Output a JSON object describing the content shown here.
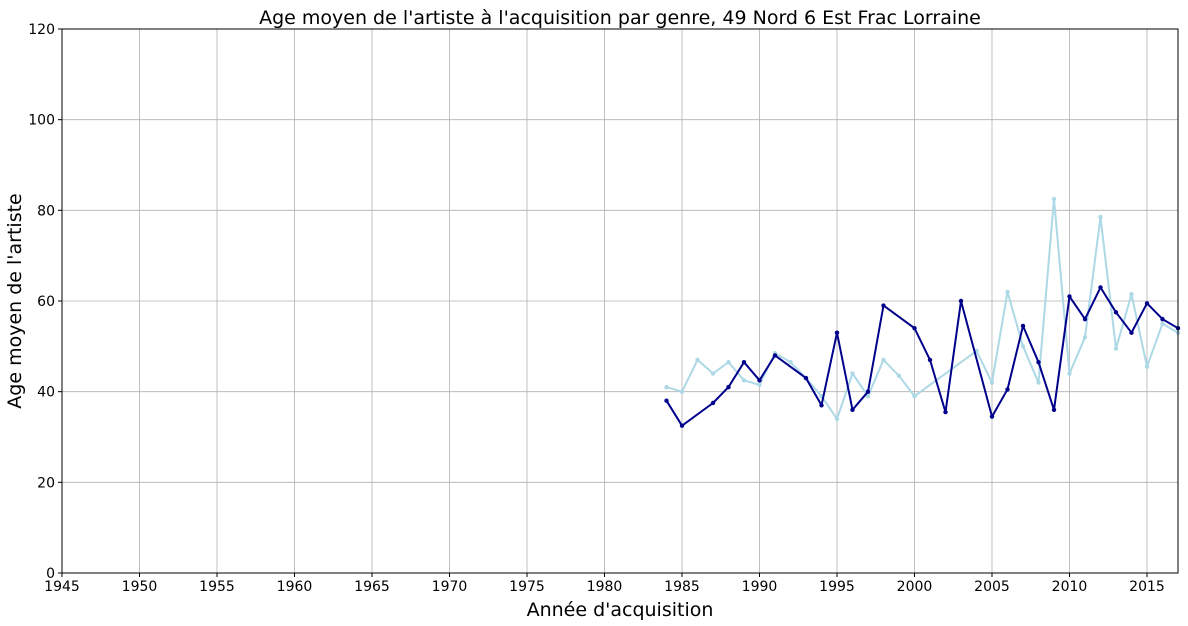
{
  "chart_data": {
    "type": "line",
    "title": "Age moyen de l'artiste à l'acquisition par genre, 49 Nord 6 Est Frac Lorraine",
    "xlabel": "Année d'acquisition",
    "ylabel": "Age moyen de l'artiste",
    "xlim": [
      1945,
      2017
    ],
    "ylim": [
      0,
      120
    ],
    "xticks": [
      1945,
      1950,
      1955,
      1960,
      1965,
      1970,
      1975,
      1980,
      1985,
      1990,
      1995,
      2000,
      2005,
      2010,
      2015
    ],
    "yticks": [
      0,
      20,
      40,
      60,
      80,
      100,
      120
    ],
    "grid": true,
    "series": [
      {
        "color": "#add8e6",
        "x": [
          1984,
          1985,
          1986,
          1987,
          1988,
          1989,
          1990,
          1991,
          1992,
          1993,
          1994,
          1995,
          1996,
          1997,
          1998,
          1999,
          2000,
          2004,
          2005,
          2006,
          2007,
          2008,
          2009,
          2010,
          2011,
          2012,
          2013,
          2014,
          2015,
          2016,
          2017
        ],
        "y": [
          41,
          40,
          47,
          44,
          46.5,
          42.5,
          41.5,
          48.5,
          46.5,
          43,
          39,
          34,
          44,
          39,
          47,
          43.5,
          39,
          49,
          42,
          62,
          50,
          42,
          82.5,
          44,
          52,
          78.5,
          49.5,
          61.5,
          45.5,
          55,
          53
        ]
      },
      {
        "color": "#00008b",
        "x": [
          1984,
          1985,
          1987,
          1988,
          1989,
          1990,
          1991,
          1993,
          1994,
          1995,
          1996,
          1997,
          1998,
          2000,
          2001,
          2002,
          2003,
          2005,
          2006,
          2007,
          2008,
          2009,
          2010,
          2011,
          2012,
          2013,
          2014,
          2015,
          2016,
          2017
        ],
        "y": [
          38,
          32.5,
          37.5,
          41,
          46.5,
          42.5,
          48,
          43,
          37,
          53,
          36,
          40,
          59,
          54,
          47,
          35.5,
          60,
          34.5,
          40.5,
          54.5,
          46.5,
          36,
          61,
          56,
          63,
          57.5,
          53,
          59.5,
          56,
          54
        ]
      }
    ]
  }
}
